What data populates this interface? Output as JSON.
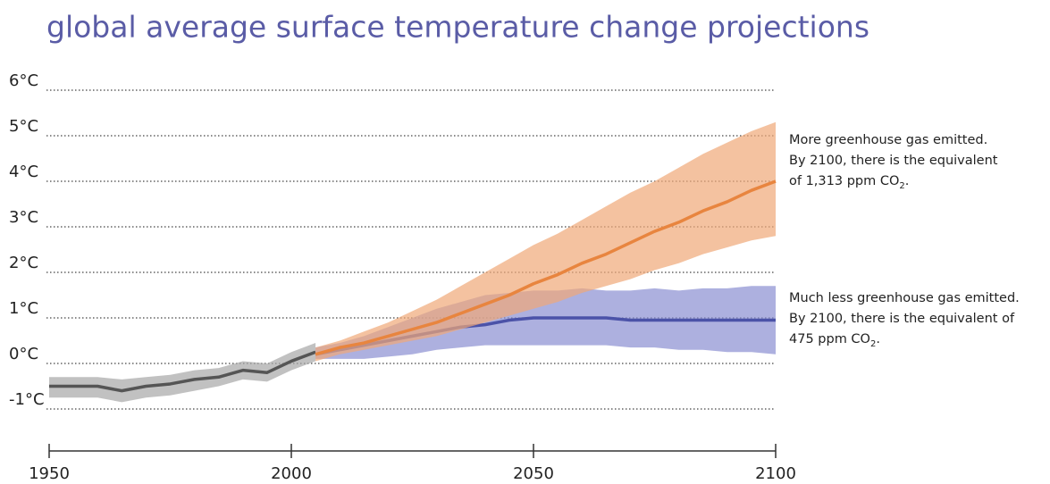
{
  "chart_data": {
    "type": "line",
    "title": "global average surface temperature change projections",
    "xlim": [
      1950,
      2100
    ],
    "xticks": [
      1950,
      2000,
      2050,
      2100
    ],
    "ylim": [
      -1,
      6
    ],
    "yticks": [
      {
        "value": -1,
        "label": "-1°C"
      },
      {
        "value": 0,
        "label": "0°C"
      },
      {
        "value": 1,
        "label": "1°C"
      },
      {
        "value": 2,
        "label": "2°C"
      },
      {
        "value": 3,
        "label": "3°C"
      },
      {
        "value": 4,
        "label": "4°C"
      },
      {
        "value": 5,
        "label": "5°C"
      },
      {
        "value": 6,
        "label": "6°C"
      }
    ],
    "grid": true,
    "series": [
      {
        "color": "#555555",
        "band_color": "#a6a6a6",
        "x": [
          1950,
          1955,
          1960,
          1965,
          1970,
          1975,
          1980,
          1985,
          1990,
          1995,
          2000,
          2005
        ],
        "values": [
          -0.5,
          -0.5,
          -0.5,
          -0.6,
          -0.5,
          -0.45,
          -0.35,
          -0.3,
          -0.15,
          -0.2,
          0.05,
          0.25
        ],
        "upper": [
          -0.3,
          -0.3,
          -0.3,
          -0.35,
          -0.3,
          -0.25,
          -0.15,
          -0.1,
          0.05,
          0.0,
          0.25,
          0.45
        ],
        "lower": [
          -0.75,
          -0.75,
          -0.75,
          -0.85,
          -0.75,
          -0.7,
          -0.6,
          -0.5,
          -0.35,
          -0.4,
          -0.15,
          0.05
        ]
      },
      {
        "color": "#4b52a8",
        "band_color": "#8a8fd2",
        "x": [
          2005,
          2010,
          2015,
          2020,
          2025,
          2030,
          2035,
          2040,
          2045,
          2050,
          2055,
          2060,
          2065,
          2070,
          2075,
          2080,
          2085,
          2090,
          2095,
          2100
        ],
        "values": [
          0.2,
          0.3,
          0.4,
          0.5,
          0.6,
          0.7,
          0.8,
          0.85,
          0.95,
          1.0,
          1.0,
          1.0,
          1.0,
          0.95,
          0.95,
          0.95,
          0.95,
          0.95,
          0.95,
          0.95
        ],
        "upper": [
          0.35,
          0.45,
          0.6,
          0.8,
          1.0,
          1.2,
          1.35,
          1.5,
          1.55,
          1.6,
          1.6,
          1.65,
          1.6,
          1.6,
          1.65,
          1.6,
          1.65,
          1.65,
          1.7,
          1.7
        ],
        "lower": [
          0.1,
          0.1,
          0.1,
          0.15,
          0.2,
          0.3,
          0.35,
          0.4,
          0.4,
          0.4,
          0.4,
          0.4,
          0.4,
          0.35,
          0.35,
          0.3,
          0.3,
          0.25,
          0.25,
          0.2
        ]
      },
      {
        "color": "#e8853f",
        "band_color": "#f0a877",
        "x": [
          2005,
          2010,
          2015,
          2020,
          2025,
          2030,
          2035,
          2040,
          2045,
          2050,
          2055,
          2060,
          2065,
          2070,
          2075,
          2080,
          2085,
          2090,
          2095,
          2100
        ],
        "values": [
          0.2,
          0.35,
          0.45,
          0.6,
          0.75,
          0.9,
          1.1,
          1.3,
          1.5,
          1.75,
          1.95,
          2.2,
          2.4,
          2.65,
          2.9,
          3.1,
          3.35,
          3.55,
          3.8,
          4.0
        ],
        "upper": [
          0.35,
          0.5,
          0.7,
          0.9,
          1.15,
          1.4,
          1.7,
          2.0,
          2.3,
          2.6,
          2.85,
          3.15,
          3.45,
          3.75,
          4.0,
          4.3,
          4.6,
          4.85,
          5.1,
          5.3
        ],
        "lower": [
          0.05,
          0.2,
          0.3,
          0.4,
          0.5,
          0.6,
          0.75,
          0.9,
          1.05,
          1.2,
          1.35,
          1.55,
          1.7,
          1.85,
          2.05,
          2.2,
          2.4,
          2.55,
          2.7,
          2.8
        ]
      }
    ],
    "annotations": [
      {
        "lines": [
          "More greenhouse gas emitted.",
          "By 2100, there is the equivalent"
        ],
        "last": "of 1,313 ppm CO",
        "sub": "2",
        "after": "."
      },
      {
        "lines": [
          "Much less greenhouse gas emitted.",
          "By 2100, there is the equivalent of"
        ],
        "last": "475 ppm CO",
        "sub": "2",
        "after": "."
      }
    ]
  }
}
